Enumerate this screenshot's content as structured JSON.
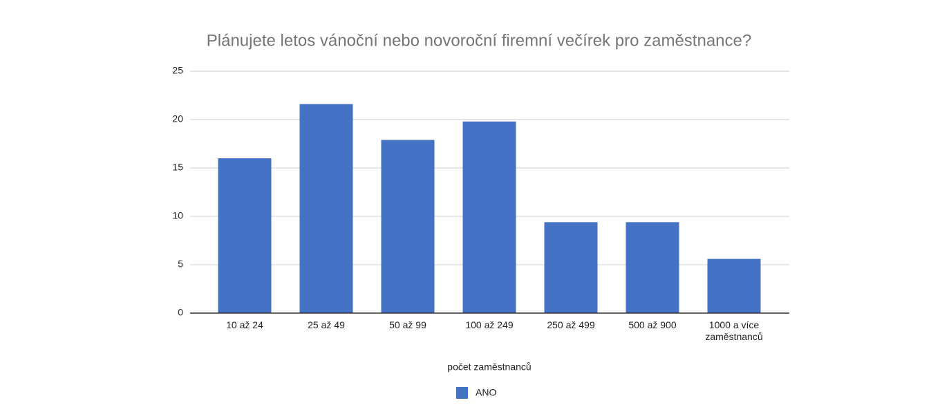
{
  "chart_data": {
    "type": "bar",
    "title": "Plánujete letos vánoční nebo novoroční firemní večírek pro zaměstnance?",
    "x_label": "počet zaměstnanců",
    "categories": [
      "10 až 24",
      "25 až 49",
      "50 až 99",
      "100 až 249",
      "250 až 499",
      "500 až 900",
      "1000 a více zaměstnanců"
    ],
    "series": [
      {
        "name": "ANO",
        "color": "#4472c4",
        "values": [
          16,
          21.6,
          17.9,
          19.8,
          9.4,
          9.4,
          5.6
        ]
      }
    ],
    "ylim": [
      0,
      25
    ],
    "yticks": [
      0,
      5,
      10,
      15,
      20,
      25
    ],
    "grid": true,
    "legend": "bottom"
  }
}
